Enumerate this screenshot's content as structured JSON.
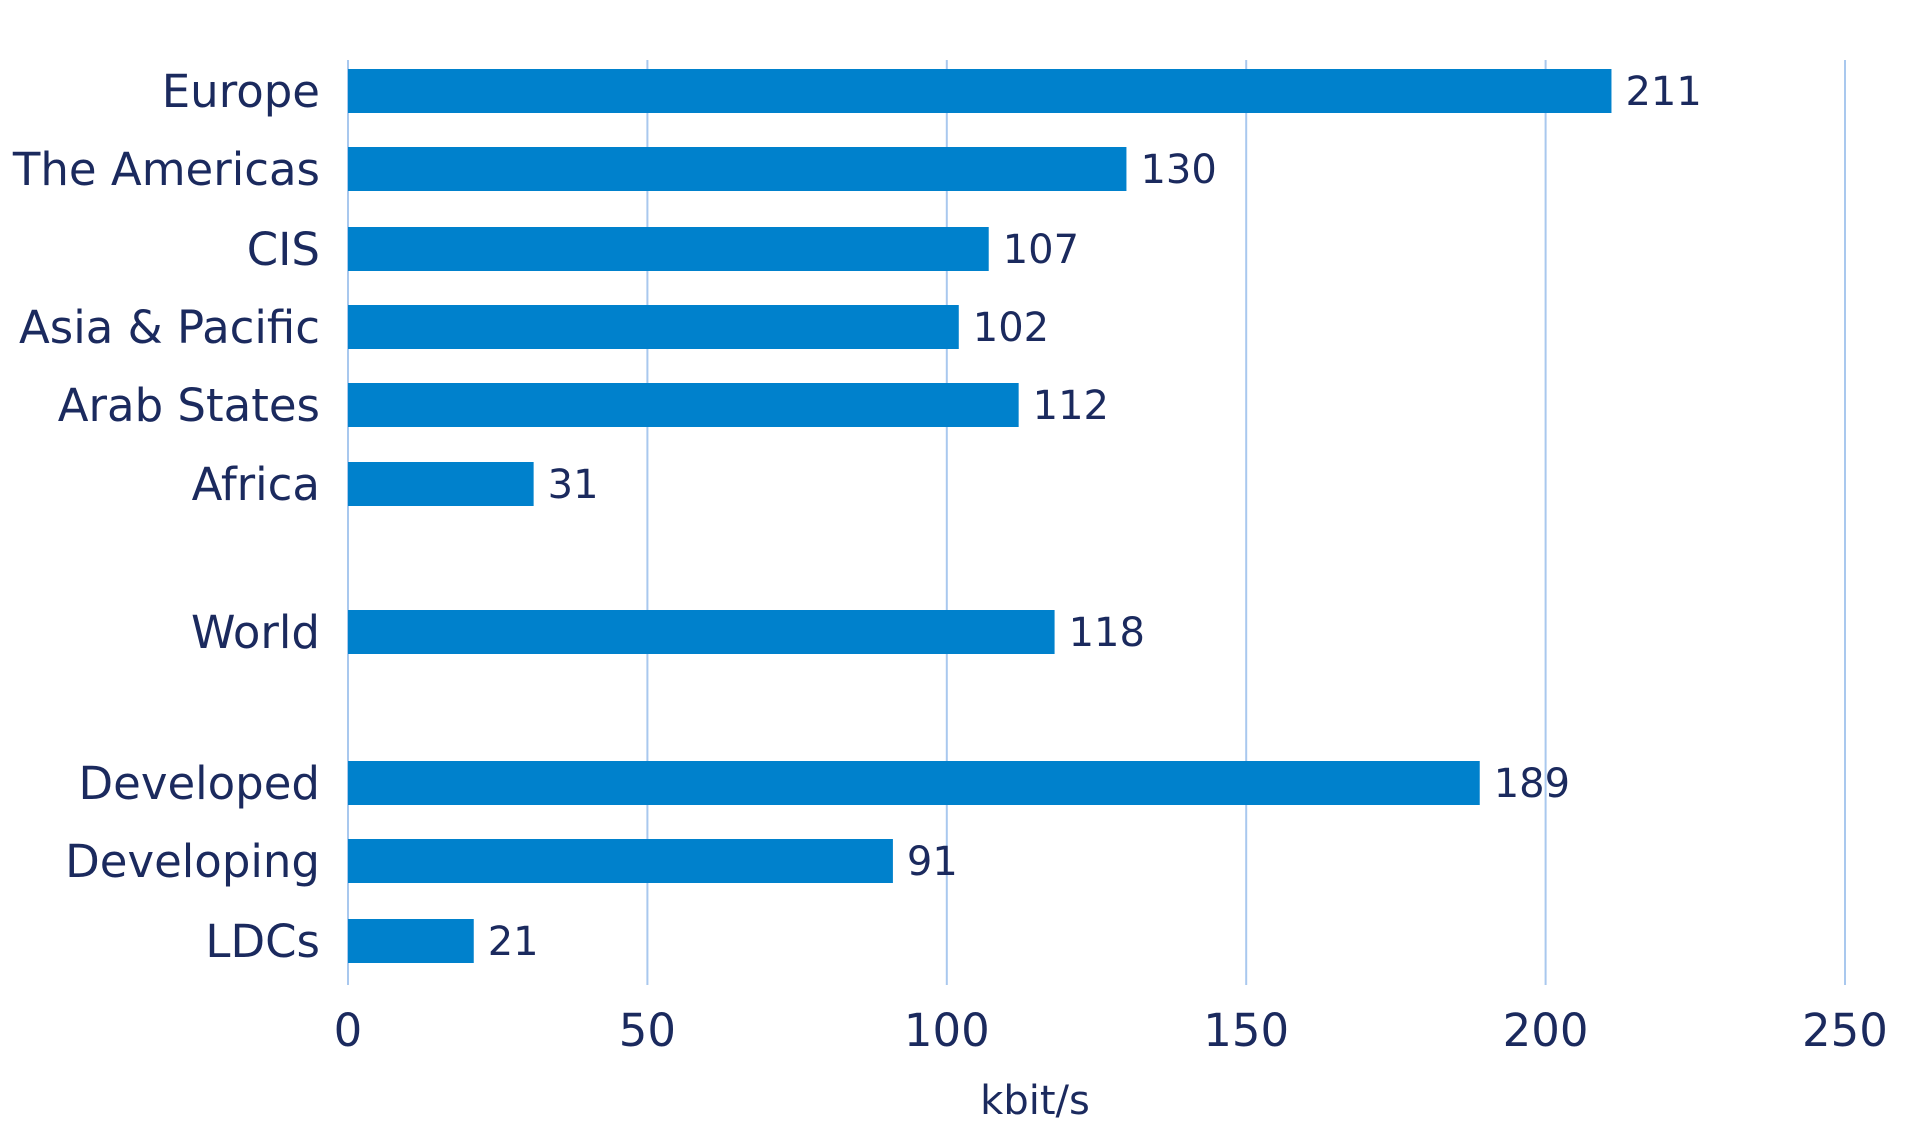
{
  "chart_data": {
    "type": "bar",
    "orientation": "horizontal",
    "categories": [
      "Europe",
      "The Americas",
      "CIS",
      "Asia & Pacific",
      "Arab States",
      "Africa",
      "World",
      "Developed",
      "Developing",
      "LDCs"
    ],
    "values": [
      211,
      130,
      107,
      102,
      112,
      31,
      118,
      189,
      91,
      21
    ],
    "data_labels": [
      "211",
      "130",
      "107",
      "102",
      "112",
      "31",
      "118",
      "189",
      "91",
      "21"
    ],
    "title": "",
    "xlabel": "kbit/s",
    "ylabel": "",
    "xlim": [
      0,
      250
    ],
    "xticks": [
      0,
      50,
      100,
      150,
      200,
      250
    ],
    "xtick_labels": [
      "0",
      "50",
      "100",
      "150",
      "200",
      "250"
    ],
    "grid": "vertical",
    "legend": "none",
    "colors": {
      "bar": "#0081CC",
      "grid": "#A9C8EE",
      "text": "#1B2A5E"
    }
  }
}
